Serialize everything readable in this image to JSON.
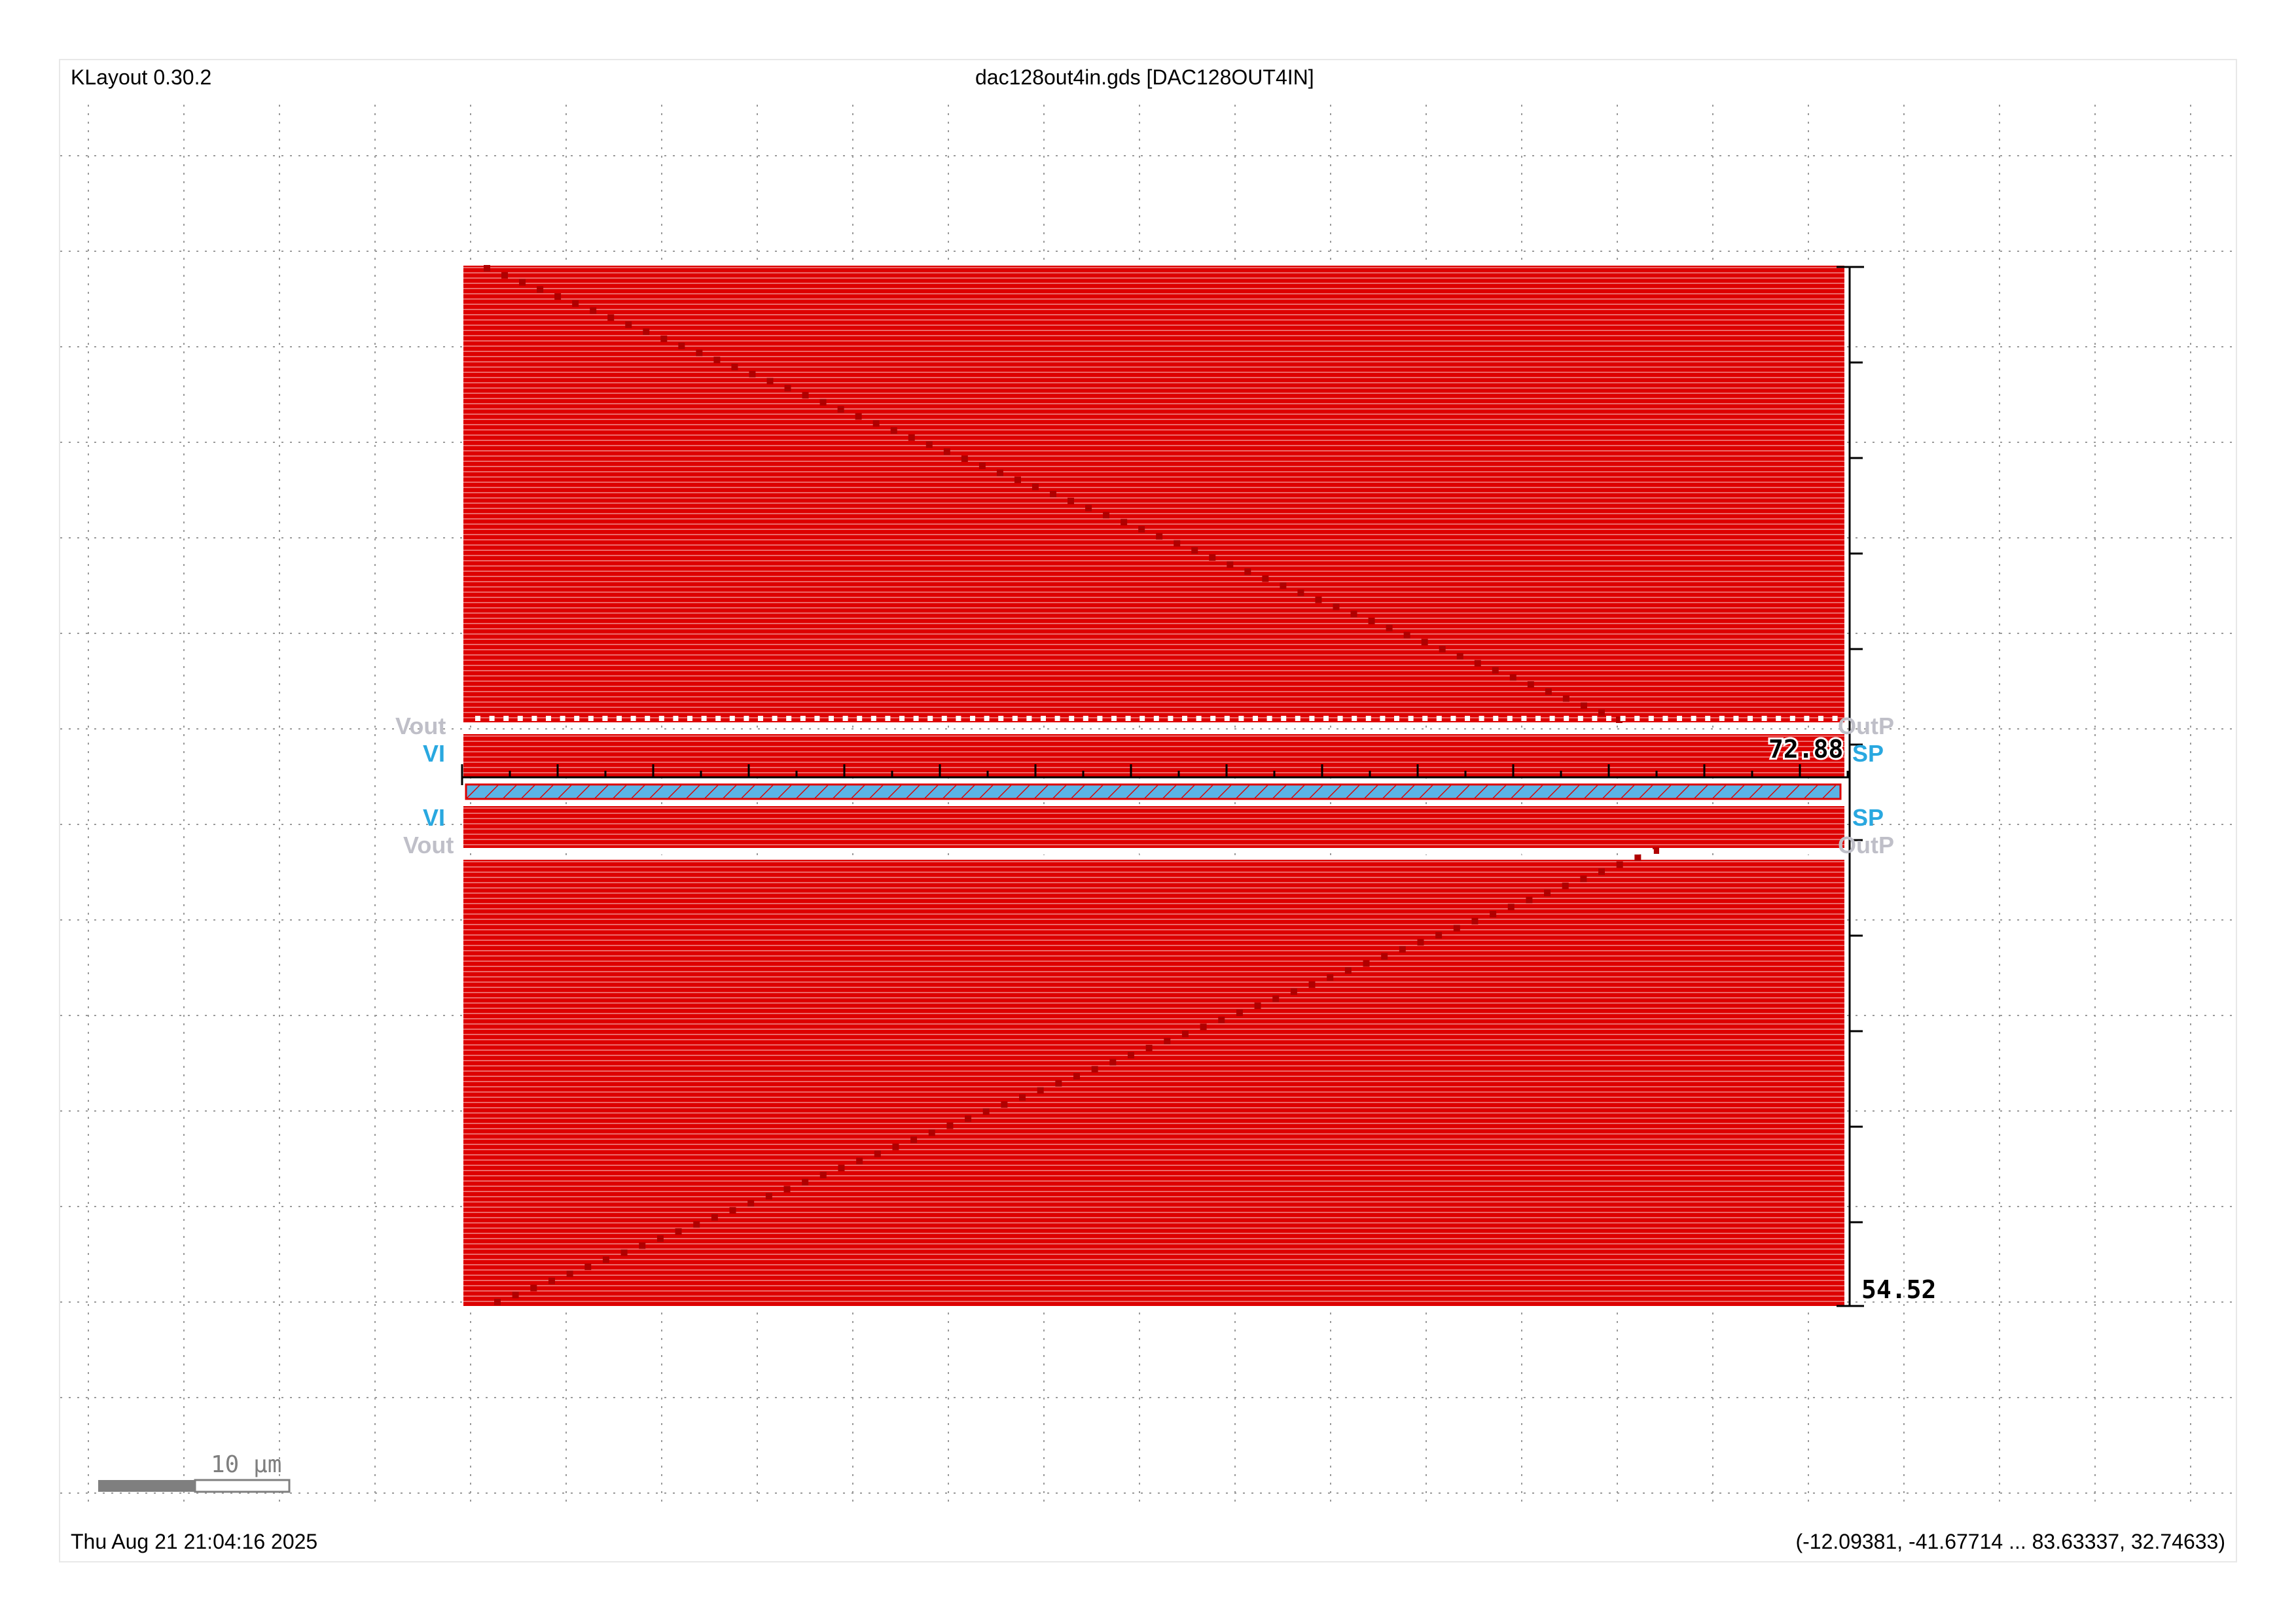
{
  "app": {
    "title": "KLayout 0.30.2"
  },
  "document": {
    "title": "dac128out4in.gds [DAC128OUT4IN]"
  },
  "footer": {
    "timestamp": "Thu Aug 21 21:04:16 2025",
    "viewport_coords": "(-12.09381, -41.67714 ... 83.63337, 32.74633)"
  },
  "canvas": {
    "ruler_top_value": "72.88",
    "ruler_right_value": "54.52",
    "scale_bar_label": "10 µm",
    "pin_labels": {
      "left_top": [
        "Vout",
        "VI"
      ],
      "left_bottom": [
        "VI",
        "Vout"
      ],
      "right_top": [
        "OutP",
        "SP"
      ],
      "right_bottom": [
        "SP",
        "OutP"
      ]
    }
  },
  "colors": {
    "metal_red": "#dd0000",
    "pin_blue": "#29a8e0",
    "pin_grey": "#bfbfc8",
    "grid_dots": "#9a9a9a",
    "background": "#ffffff"
  }
}
